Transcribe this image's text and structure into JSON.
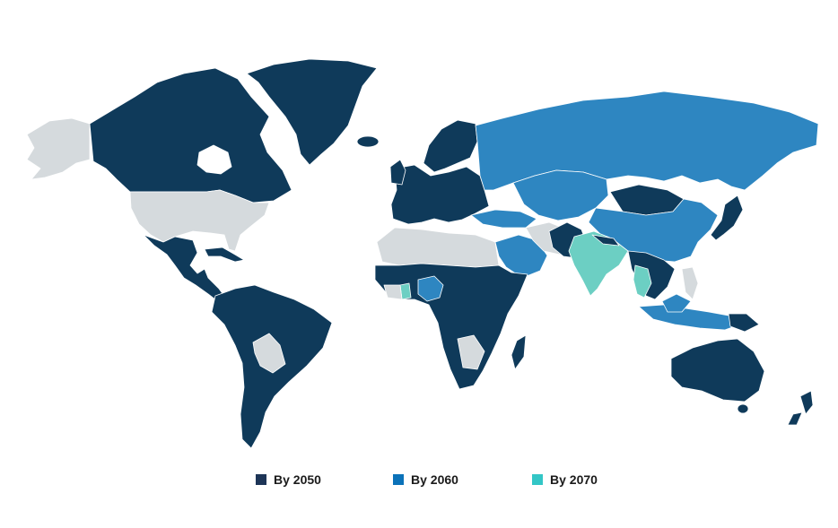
{
  "legend": {
    "items": [
      {
        "label": "By 2050",
        "color": "#1d3557"
      },
      {
        "label": "By 2060",
        "color": "#0b72b9"
      },
      {
        "label": "By 2070",
        "color": "#33c6c6"
      }
    ]
  },
  "map": {
    "region_status": {
      "greenland": "By 2050",
      "canada": "By 2050",
      "alaska": "none",
      "usa": "none",
      "mexico-central-america": "By 2050",
      "caribbean": "By 2050",
      "south-america": "By 2050",
      "bolivia-paraguay": "none",
      "europe": "By 2050",
      "scandinavia": "By 2050",
      "russia": "By 2060",
      "china": "By 2060",
      "mongolia": "By 2050",
      "kazakhstan-central-asia": "By 2060",
      "turkey": "By 2060",
      "saudi-arabia": "By 2060",
      "iran-gulf": "none",
      "north-africa": "none",
      "sub-saharan-africa": "By 2050",
      "nigeria": "By 2060",
      "madagascar": "By 2050",
      "pakistan-nepal": "By 2050",
      "india": "By 2070",
      "thailand": "By 2070",
      "southeast-asia": "By 2050",
      "indonesia": "By 2060",
      "japan-korea": "By 2050",
      "australia": "By 2050",
      "new-zealand": "By 2050"
    }
  }
}
